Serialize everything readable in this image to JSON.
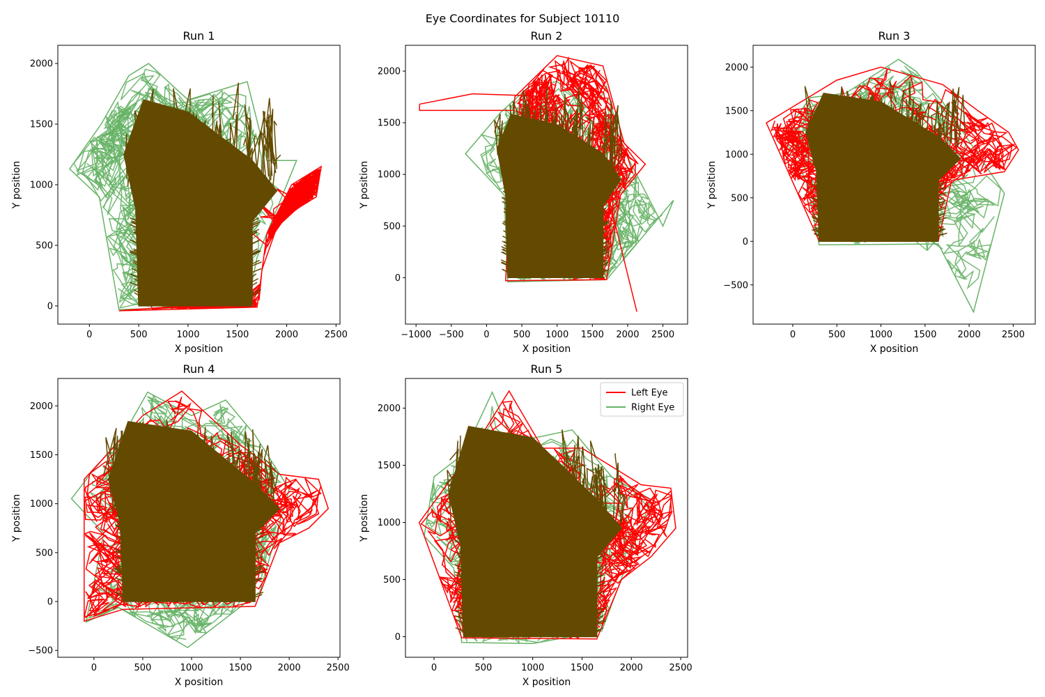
{
  "figure": {
    "suptitle": "Eye Coordinates for Subject 10110"
  },
  "colors": {
    "left_eye": "#ff0000",
    "right_eye": "#66b266",
    "overlap": "#634a00"
  },
  "legend": {
    "placement": "upper-right of Run 5",
    "entries": [
      {
        "label": "Left Eye",
        "color": "#ff0000"
      },
      {
        "label": "Right Eye",
        "color": "#66b266"
      }
    ]
  },
  "chart_data": [
    {
      "type": "line",
      "title": "Run 1",
      "xlabel": "X position",
      "ylabel": "Y position",
      "xlim": [
        -320,
        2540
      ],
      "ylim": [
        -150,
        2150
      ],
      "xticks": [
        0,
        500,
        1000,
        1500,
        2000,
        2500
      ],
      "yticks": [
        0,
        500,
        1000,
        1500,
        2000
      ],
      "grid": false,
      "series": [
        {
          "name": "Left Eye",
          "envelope": [
            [
              300,
              -40
            ],
            [
              1700,
              -10
            ],
            [
              1800,
              600
            ],
            [
              2050,
              1000
            ],
            [
              2350,
              1150
            ],
            [
              2300,
              900
            ],
            [
              2100,
              800
            ],
            [
              1900,
              650
            ],
            [
              1750,
              300
            ],
            [
              1720,
              50
            ]
          ],
          "approx_range": {
            "x": [
              250,
              2360
            ],
            "y": [
              -50,
              2000
            ]
          }
        },
        {
          "name": "Right Eye",
          "envelope": [
            [
              -200,
              1130
            ],
            [
              120,
              1500
            ],
            [
              400,
              1900
            ],
            [
              600,
              2000
            ],
            [
              1000,
              1700
            ],
            [
              1400,
              1800
            ],
            [
              1600,
              1850
            ],
            [
              1800,
              1200
            ],
            [
              2100,
              1200
            ],
            [
              1700,
              400
            ],
            [
              1600,
              0
            ],
            [
              300,
              -30
            ],
            [
              100,
              900
            ]
          ],
          "approx_range": {
            "x": [
              -200,
              2150
            ],
            "y": [
              -40,
              2040
            ]
          }
        }
      ]
    },
    {
      "type": "line",
      "title": "Run 2",
      "xlabel": "X position",
      "ylabel": "Y position",
      "xlim": [
        -1150,
        2850
      ],
      "ylim": [
        -450,
        2250
      ],
      "xticks": [
        -1000,
        -500,
        0,
        500,
        1000,
        1500,
        2000,
        2500
      ],
      "yticks": [
        0,
        500,
        1000,
        1500,
        2000
      ],
      "grid": false,
      "series": [
        {
          "name": "Left Eye",
          "envelope": [
            [
              270,
              -30
            ],
            [
              1700,
              -20
            ],
            [
              1900,
              800
            ],
            [
              2250,
              1100
            ],
            [
              1950,
              1300
            ],
            [
              1650,
              2050
            ],
            [
              1000,
              2150
            ],
            [
              400,
              1750
            ]
          ],
          "approx_range": {
            "x": [
              -950,
              2300
            ],
            "y": [
              -330,
              2150
            ]
          },
          "outliers": [
            [
              -950,
              1680
            ],
            [
              -950,
              1620
            ],
            [
              -200,
              1780
            ],
            [
              2130,
              -330
            ]
          ]
        },
        {
          "name": "Right Eye",
          "envelope": [
            [
              -300,
              1200
            ],
            [
              200,
              1600
            ],
            [
              600,
              1850
            ],
            [
              1000,
              1900
            ],
            [
              1500,
              1600
            ],
            [
              1700,
              1850
            ],
            [
              1900,
              1300
            ],
            [
              2500,
              500
            ],
            [
              2650,
              750
            ],
            [
              1700,
              -20
            ],
            [
              300,
              -40
            ],
            [
              250,
              800
            ]
          ],
          "approx_range": {
            "x": [
              -300,
              2680
            ],
            "y": [
              -50,
              1880
            ]
          }
        }
      ]
    },
    {
      "type": "line",
      "title": "Run 3",
      "xlabel": "X position",
      "ylabel": "Y position",
      "xlim": [
        -450,
        2750
      ],
      "ylim": [
        -950,
        2250
      ],
      "xticks": [
        0,
        500,
        1000,
        1500,
        2000,
        2500
      ],
      "yticks": [
        -500,
        0,
        500,
        1000,
        1500,
        2000
      ],
      "grid": false,
      "series": [
        {
          "name": "Left Eye",
          "envelope": [
            [
              300,
              0
            ],
            [
              1650,
              0
            ],
            [
              1800,
              700
            ],
            [
              2400,
              800
            ],
            [
              2560,
              1050
            ],
            [
              2450,
              1250
            ],
            [
              2100,
              1500
            ],
            [
              1700,
              1800
            ],
            [
              1000,
              2000
            ],
            [
              500,
              1850
            ],
            [
              -300,
              1360
            ]
          ],
          "approx_range": {
            "x": [
              -300,
              2560
            ],
            "y": [
              -10,
              2000
            ]
          }
        },
        {
          "name": "Right Eye",
          "envelope": [
            [
              -50,
              1100
            ],
            [
              -50,
              1300
            ],
            [
              200,
              1650
            ],
            [
              600,
              1700
            ],
            [
              1200,
              2090
            ],
            [
              1400,
              1950
            ],
            [
              1700,
              1600
            ],
            [
              1900,
              1300
            ],
            [
              2400,
              550
            ],
            [
              2050,
              -810
            ],
            [
              1650,
              -30
            ],
            [
              300,
              -40
            ],
            [
              150,
              700
            ]
          ],
          "approx_range": {
            "x": [
              -350,
              2400
            ],
            "y": [
              -810,
              2090
            ]
          }
        }
      ]
    },
    {
      "type": "line",
      "title": "Run 4",
      "xlabel": "X position",
      "ylabel": "Y position",
      "xlim": [
        -370,
        2520
      ],
      "ylim": [
        -570,
        2280
      ],
      "xticks": [
        0,
        500,
        1000,
        1500,
        2000,
        2500
      ],
      "yticks": [
        -500,
        0,
        500,
        1000,
        1500,
        2000
      ],
      "grid": false,
      "series": [
        {
          "name": "Left Eye",
          "envelope": [
            [
              -100,
              -200
            ],
            [
              300,
              -80
            ],
            [
              1650,
              -50
            ],
            [
              1900,
              600
            ],
            [
              2200,
              750
            ],
            [
              2400,
              950
            ],
            [
              2300,
              1250
            ],
            [
              1900,
              1300
            ],
            [
              1500,
              1600
            ],
            [
              900,
              2150
            ],
            [
              500,
              1900
            ],
            [
              -100,
              1250
            ]
          ],
          "approx_range": {
            "x": [
              -100,
              2400
            ],
            "y": [
              -210,
              2150
            ]
          }
        },
        {
          "name": "Right Eye",
          "envelope": [
            [
              -230,
              1050
            ],
            [
              0,
              1350
            ],
            [
              300,
              1700
            ],
            [
              550,
              2140
            ],
            [
              1000,
              1900
            ],
            [
              1350,
              2060
            ],
            [
              1650,
              1700
            ],
            [
              2000,
              1150
            ],
            [
              1700,
              100
            ],
            [
              960,
              -470
            ],
            [
              250,
              -60
            ],
            [
              -80,
              -210
            ],
            [
              100,
              700
            ]
          ],
          "approx_range": {
            "x": [
              -230,
              2050
            ],
            "y": [
              -470,
              2140
            ]
          }
        }
      ]
    },
    {
      "type": "line",
      "title": "Run 5",
      "xlabel": "X position",
      "ylabel": "Y position",
      "xlim": [
        -290,
        2570
      ],
      "ylim": [
        -180,
        2260
      ],
      "xticks": [
        0,
        500,
        1000,
        1500,
        2000,
        2500
      ],
      "yticks": [
        0,
        500,
        1000,
        1500,
        2000
      ],
      "grid": false,
      "series": [
        {
          "name": "Left Eye",
          "envelope": [
            [
              280,
              -10
            ],
            [
              1650,
              -20
            ],
            [
              1900,
              500
            ],
            [
              2200,
              700
            ],
            [
              2450,
              950
            ],
            [
              2400,
              1300
            ],
            [
              2100,
              1330
            ],
            [
              1500,
              1650
            ],
            [
              1100,
              1650
            ],
            [
              760,
              2150
            ],
            [
              400,
              1650
            ],
            [
              -150,
              1000
            ]
          ],
          "approx_range": {
            "x": [
              -150,
              2450
            ],
            "y": [
              -40,
              2150
            ]
          }
        },
        {
          "name": "Right Eye",
          "envelope": [
            [
              -100,
              880
            ],
            [
              0,
              1400
            ],
            [
              300,
              1600
            ],
            [
              590,
              2140
            ],
            [
              800,
              1700
            ],
            [
              1400,
              1810
            ],
            [
              1800,
              1400
            ],
            [
              2200,
              1200
            ],
            [
              1700,
              50
            ],
            [
              1000,
              -60
            ],
            [
              280,
              -50
            ],
            [
              200,
              600
            ]
          ],
          "approx_range": {
            "x": [
              -100,
              2200
            ],
            "y": [
              -60,
              2140
            ]
          }
        }
      ]
    }
  ]
}
